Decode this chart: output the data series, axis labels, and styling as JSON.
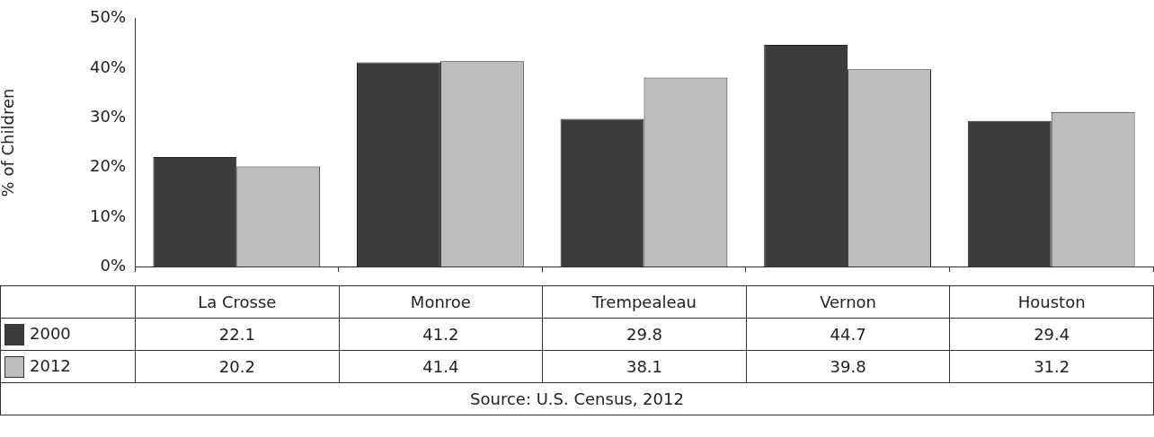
{
  "chart_data": {
    "type": "bar",
    "ylabel": "% of Children",
    "categories": [
      "La Crosse",
      "Monroe",
      "Trempealeau",
      "Vernon",
      "Houston"
    ],
    "series": [
      {
        "name": "2000",
        "color": "#3c3c3c",
        "values": [
          22.1,
          41.2,
          29.8,
          44.7,
          29.4
        ]
      },
      {
        "name": "2012",
        "color": "#bdbdbd",
        "values": [
          20.2,
          41.4,
          38.1,
          39.8,
          31.2
        ]
      }
    ],
    "ylim": [
      0,
      50
    ],
    "yticks": [
      {
        "value": 0,
        "label": "0%"
      },
      {
        "value": 10,
        "label": "10%"
      },
      {
        "value": 20,
        "label": "20%"
      },
      {
        "value": 30,
        "label": "30%"
      },
      {
        "value": 40,
        "label": "40%"
      },
      {
        "value": 50,
        "label": "50%"
      }
    ],
    "grid": false,
    "legend": "bottom",
    "data_labels": true,
    "annotations": [
      "Source: U.S. Census, 2012"
    ]
  }
}
